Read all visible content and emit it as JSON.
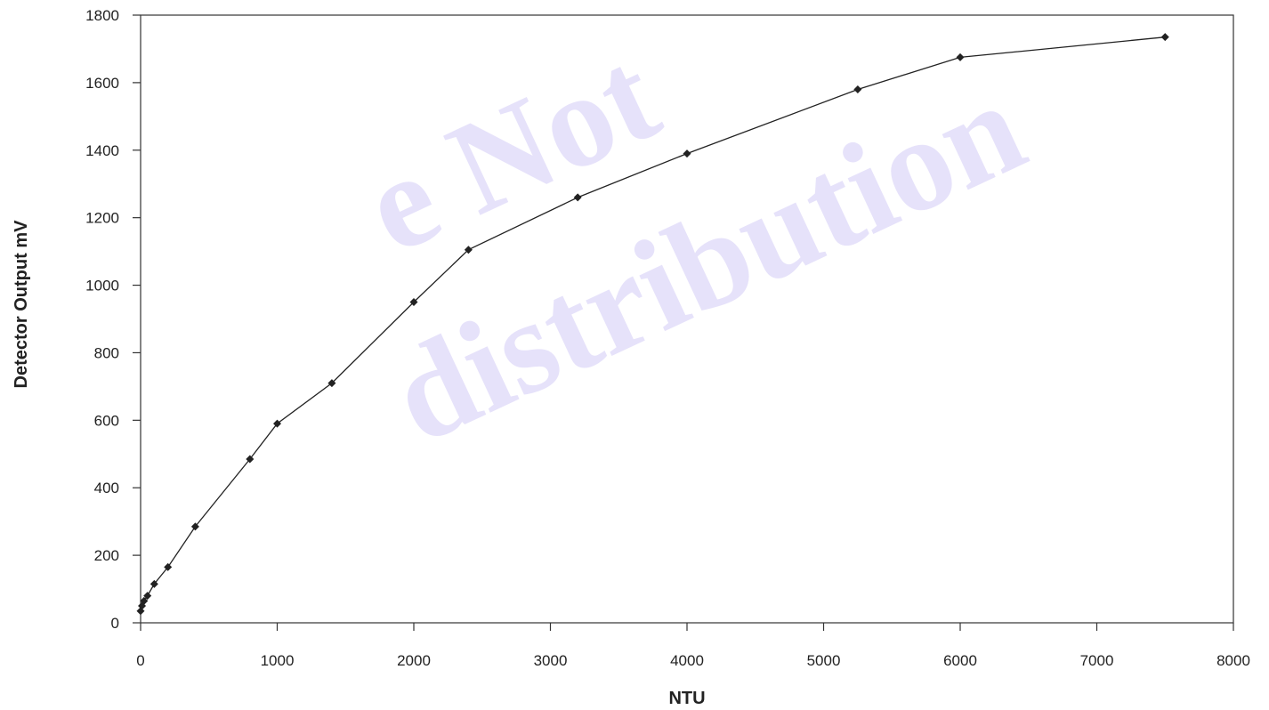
{
  "chart_data": {
    "type": "line",
    "xlabel": "NTU",
    "ylabel": "Detector Output mV",
    "xlim": [
      0,
      8000
    ],
    "ylim": [
      0,
      1800
    ],
    "xticks": [
      0,
      1000,
      2000,
      3000,
      4000,
      5000,
      6000,
      7000,
      8000
    ],
    "yticks": [
      0,
      200,
      400,
      600,
      800,
      1000,
      1200,
      1400,
      1600,
      1800
    ],
    "grid": false,
    "legend": "none",
    "series": [
      {
        "marker": "diamond",
        "color": "#222222",
        "x": [
          0,
          10,
          25,
          50,
          100,
          200,
          400,
          800,
          1000,
          1400,
          2000,
          2400,
          3200,
          4000,
          5250,
          6000,
          7500
        ],
        "y": [
          35,
          50,
          65,
          80,
          115,
          165,
          285,
          485,
          590,
          710,
          950,
          1105,
          1260,
          1390,
          1580,
          1675,
          1735
        ]
      }
    ]
  },
  "watermark": {
    "line1": "e Not",
    "line2": "distribution"
  }
}
